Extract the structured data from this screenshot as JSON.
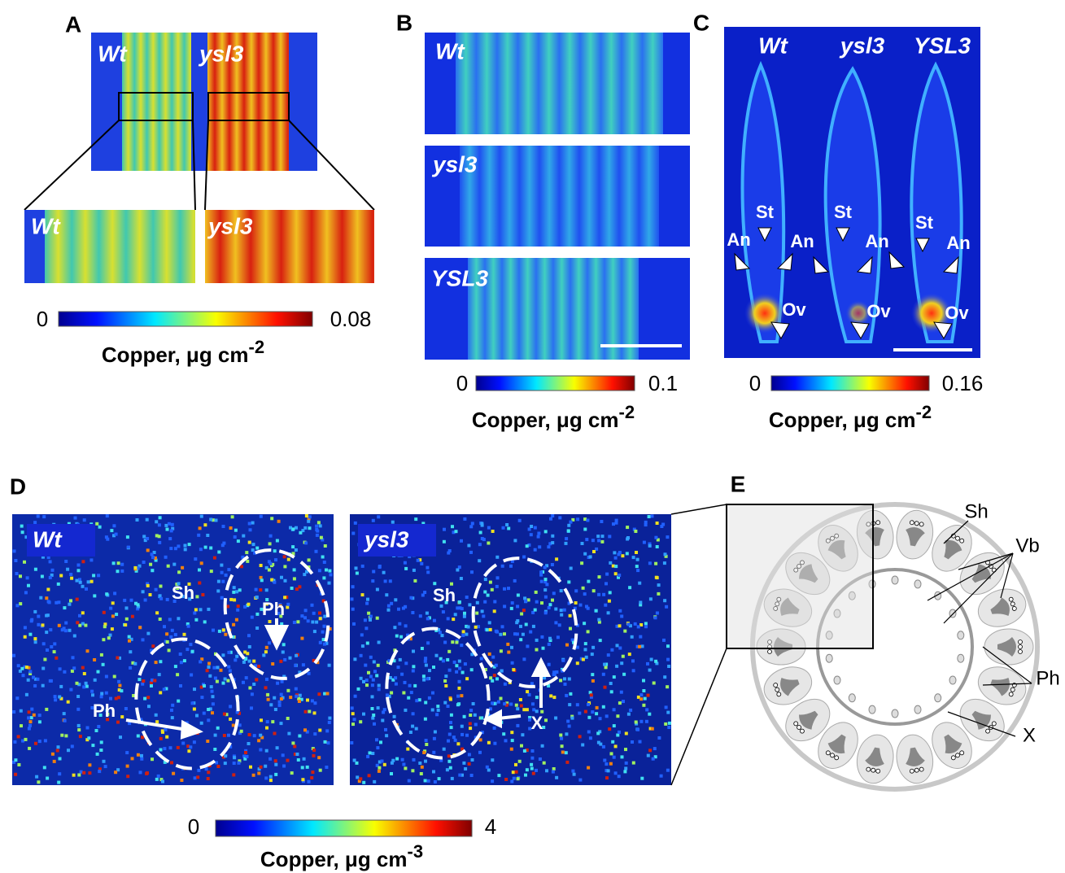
{
  "panels": [
    {
      "label": "A",
      "samples": [
        "Wt",
        "ysl3"
      ],
      "zoom_samples": [
        "Wt",
        "ysl3"
      ],
      "colorbar": {
        "min": 0,
        "max": 0.08,
        "quantity": "Copper, μg cm",
        "exponent": "-2"
      }
    },
    {
      "label": "B",
      "samples": [
        "Wt",
        "ysl3",
        "YSL3"
      ],
      "colorbar": {
        "min": 0,
        "max": 0.1,
        "quantity": "Copper, μg cm",
        "exponent": "-2"
      }
    },
    {
      "label": "C",
      "samples": [
        "Wt",
        "ysl3",
        "YSL3"
      ],
      "annotations": [
        "St",
        "St",
        "St",
        "An",
        "An",
        "An",
        "An",
        "Ov",
        "Ov",
        "Ov"
      ],
      "colorbar": {
        "min": 0,
        "max": 0.16,
        "quantity": "Copper, μg cm",
        "exponent": "-2"
      }
    },
    {
      "label": "D",
      "samples": [
        "Wt",
        "ysl3"
      ],
      "annotations": [
        "Sh",
        "Ph",
        "Ph",
        "Sh",
        "X"
      ],
      "colorbar": {
        "min": 0,
        "max": 4,
        "quantity": "Copper, μg cm",
        "exponent": "-3"
      }
    },
    {
      "label": "E",
      "annotations": [
        "Sh",
        "Vb",
        "Ph",
        "X"
      ]
    }
  ]
}
